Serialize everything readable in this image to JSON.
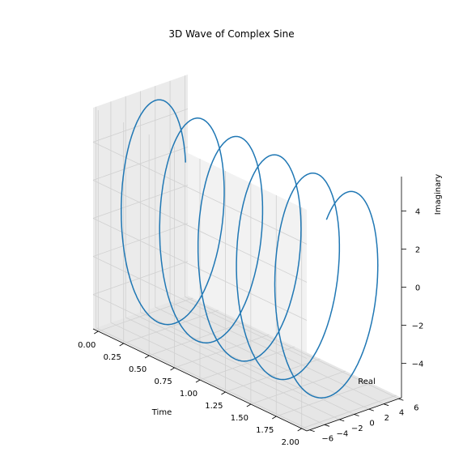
{
  "chart_data": {
    "type": "line",
    "title": "3D Wave of Complex Sine",
    "xlabel": "Time",
    "ylabel": "Real",
    "zlabel": "Imaginary",
    "xlim": [
      -0.05,
      2.05
    ],
    "ylim": [
      -6.4,
      6.4
    ],
    "zlim": [
      -5.8,
      5.8
    ],
    "xticks": [
      "0.00",
      "0.25",
      "0.50",
      "0.75",
      "1.00",
      "1.25",
      "1.50",
      "1.75",
      "2.00"
    ],
    "yticks": [
      "−6",
      "−4",
      "−2",
      "0",
      "2",
      "4",
      "6"
    ],
    "zticks": [
      "−4",
      "−2",
      "0",
      "2",
      "4"
    ],
    "grid": true,
    "line_color": "#1f77b4",
    "series": [
      {
        "t_range": [
          0,
          2
        ],
        "turns": 5.3,
        "amplitude": 5.6,
        "start_phase_deg": 15
      }
    ]
  }
}
